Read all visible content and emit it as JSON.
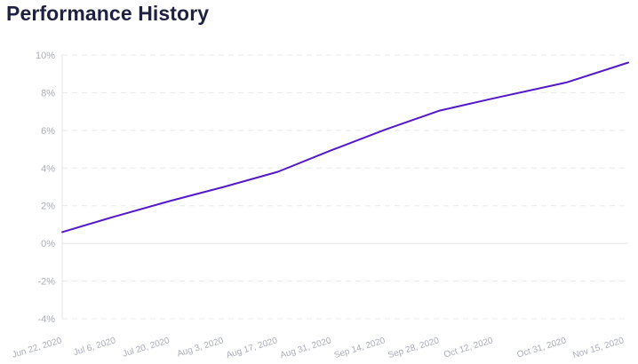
{
  "page": {
    "title": "Performance History"
  },
  "colors": {
    "title": "#1f2142",
    "line": "#5318c9",
    "grid": "#e6e8ec",
    "axis": "#e3e5ea",
    "tick_label": "#a9adb8"
  },
  "chart_data": {
    "type": "line",
    "title": "Performance History",
    "xlabel": "",
    "ylabel": "",
    "x_axis_type": "date",
    "y_unit": "%",
    "ylim": [
      -4,
      10
    ],
    "yticks": [
      10,
      8,
      6,
      4,
      2,
      0,
      -2,
      -4
    ],
    "ytick_labels": [
      "10%",
      "8%",
      "6%",
      "4%",
      "2%",
      "0%",
      "-2%",
      "-4%"
    ],
    "xlim": [
      "2020-06-22",
      "2020-11-16"
    ],
    "xticks": [
      "2020-06-22",
      "2020-07-06",
      "2020-07-20",
      "2020-08-03",
      "2020-08-17",
      "2020-08-31",
      "2020-09-14",
      "2020-09-28",
      "2020-10-12",
      "2020-10-31",
      "2020-11-15"
    ],
    "xtick_labels": [
      "Jun 22, 2020",
      "Jul 6, 2020",
      "Jul 20, 2020",
      "Aug 3, 2020",
      "Aug 17, 2020",
      "Aug 31, 2020",
      "Sep 14, 2020",
      "Sep 28, 2020",
      "Oct 12, 2020",
      "Oct 31, 2020",
      "Nov 15, 2020"
    ],
    "grid": true,
    "legend": false,
    "series": [
      {
        "color": "#5318c9",
        "x": [
          "2020-06-22",
          "2020-07-06",
          "2020-07-20",
          "2020-08-03",
          "2020-08-17",
          "2020-08-31",
          "2020-09-14",
          "2020-09-28",
          "2020-10-12",
          "2020-10-31",
          "2020-11-16"
        ],
        "values": [
          0.6,
          1.45,
          2.25,
          3.0,
          3.8,
          4.95,
          6.05,
          7.05,
          7.7,
          8.55,
          9.6
        ]
      }
    ]
  }
}
